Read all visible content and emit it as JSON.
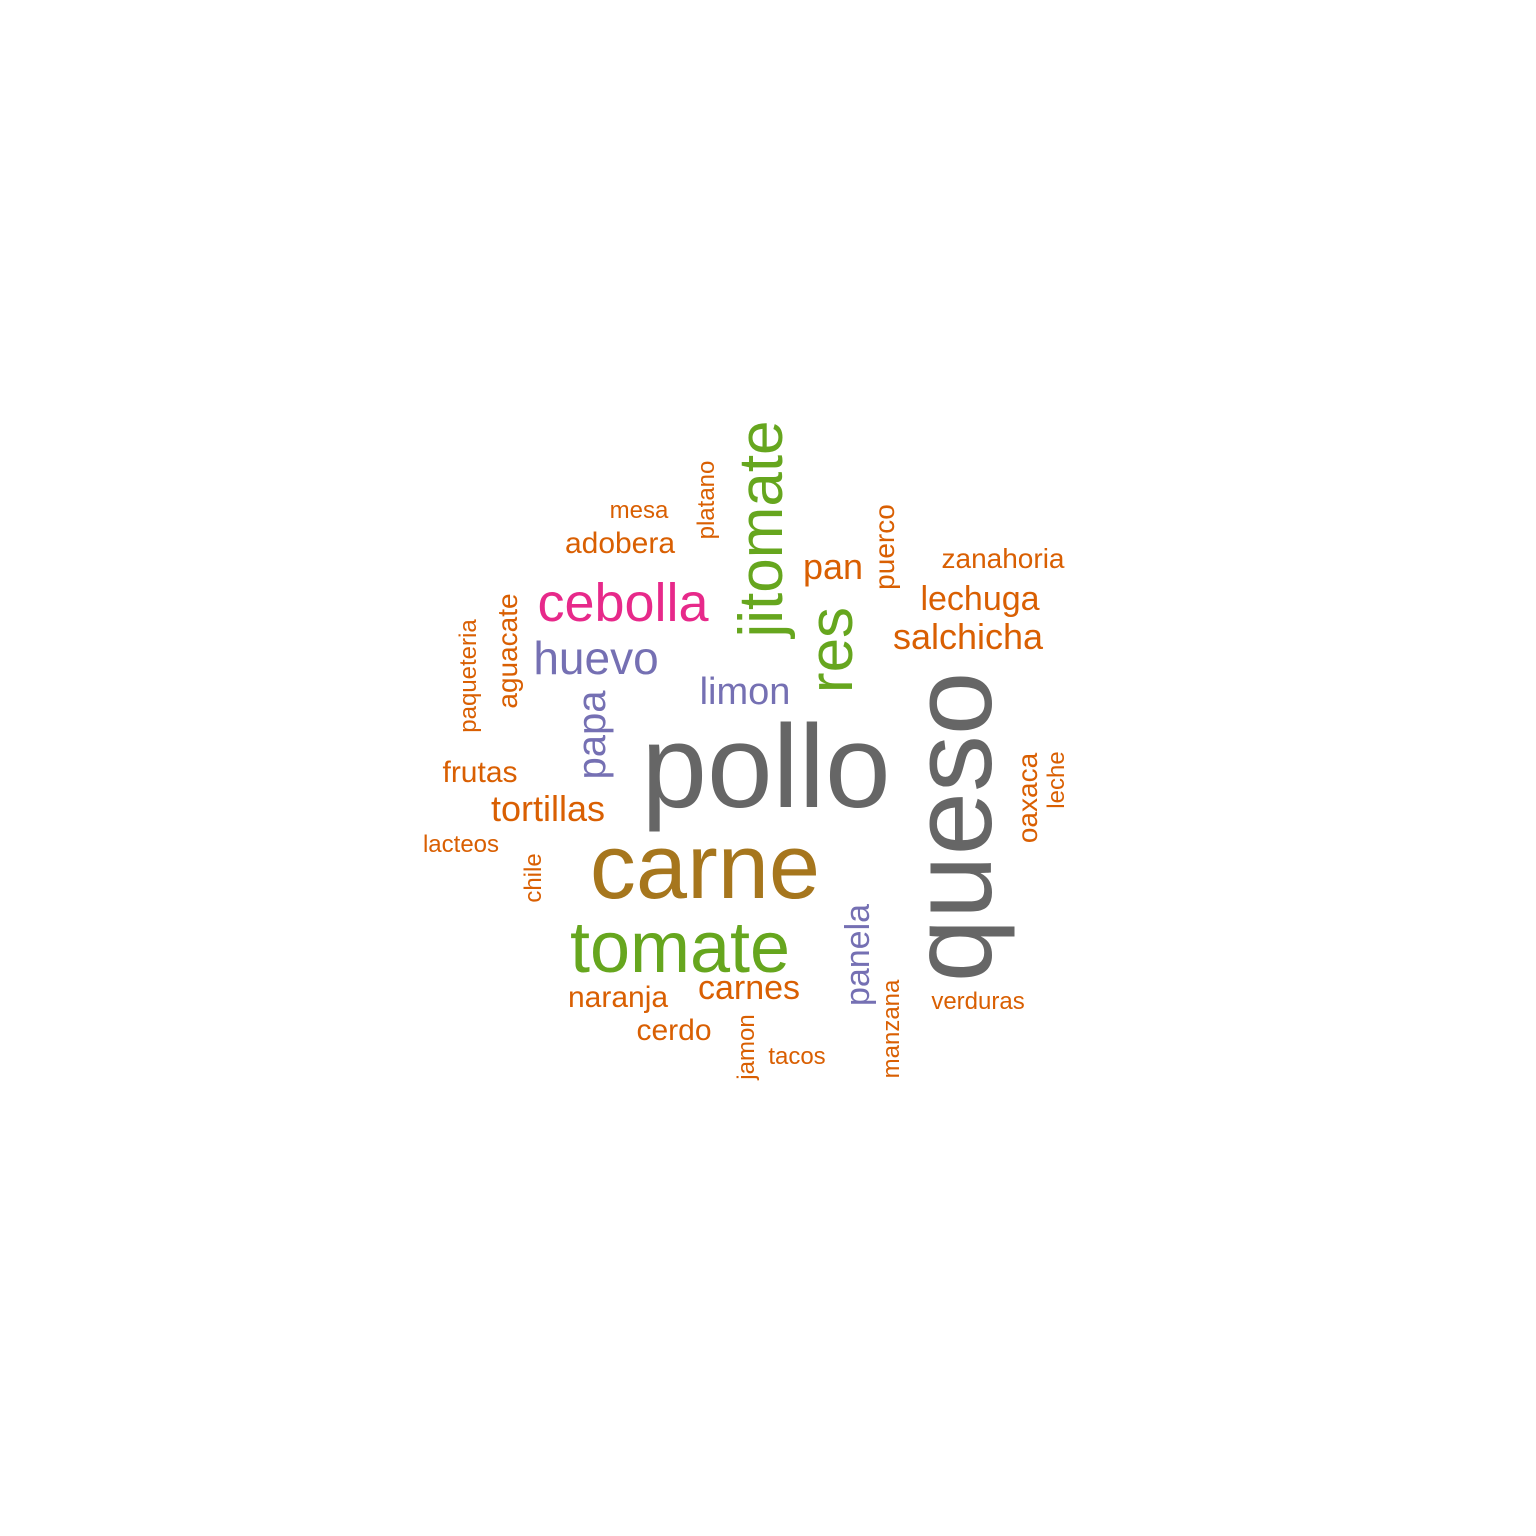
{
  "colors": {
    "background": "#ffffff",
    "orange": "#d95f02",
    "gray": "#666666",
    "brown": "#a6761d",
    "green": "#66a61e",
    "purple": "#7570b3",
    "pink": "#e7298a"
  },
  "words": [
    {
      "id": "pollo",
      "text": "pollo",
      "color": "#666666",
      "rotated": false
    },
    {
      "id": "queso",
      "text": "queso",
      "color": "#666666",
      "rotated": true
    },
    {
      "id": "carne",
      "text": "carne",
      "color": "#a6761d",
      "rotated": false
    },
    {
      "id": "tomate",
      "text": "tomate",
      "color": "#66a61e",
      "rotated": false
    },
    {
      "id": "jitomate",
      "text": "jitomate",
      "color": "#66a61e",
      "rotated": true
    },
    {
      "id": "res",
      "text": "res",
      "color": "#66a61e",
      "rotated": true
    },
    {
      "id": "cebolla",
      "text": "cebolla",
      "color": "#e7298a",
      "rotated": false
    },
    {
      "id": "huevo",
      "text": "huevo",
      "color": "#7570b3",
      "rotated": false
    },
    {
      "id": "papa",
      "text": "papa",
      "color": "#7570b3",
      "rotated": true
    },
    {
      "id": "limon",
      "text": "limon",
      "color": "#7570b3",
      "rotated": false
    },
    {
      "id": "panela",
      "text": "panela",
      "color": "#7570b3",
      "rotated": true
    },
    {
      "id": "salchicha",
      "text": "salchicha",
      "color": "#d95f02",
      "rotated": false
    },
    {
      "id": "lechuga",
      "text": "lechuga",
      "color": "#d95f02",
      "rotated": false
    },
    {
      "id": "pan",
      "text": "pan",
      "color": "#d95f02",
      "rotated": false
    },
    {
      "id": "tortillas",
      "text": "tortillas",
      "color": "#d95f02",
      "rotated": false
    },
    {
      "id": "carnes",
      "text": "carnes",
      "color": "#d95f02",
      "rotated": false
    },
    {
      "id": "adobera",
      "text": "adobera",
      "color": "#d95f02",
      "rotated": false
    },
    {
      "id": "frutas",
      "text": "frutas",
      "color": "#d95f02",
      "rotated": false
    },
    {
      "id": "naranja",
      "text": "naranja",
      "color": "#d95f02",
      "rotated": false
    },
    {
      "id": "cerdo",
      "text": "cerdo",
      "color": "#d95f02",
      "rotated": false
    },
    {
      "id": "aguacate",
      "text": "aguacate",
      "color": "#d95f02",
      "rotated": true
    },
    {
      "id": "puerco",
      "text": "puerco",
      "color": "#d95f02",
      "rotated": true
    },
    {
      "id": "oaxaca",
      "text": "oaxaca",
      "color": "#d95f02",
      "rotated": true
    },
    {
      "id": "zanahoria",
      "text": "zanahoria",
      "color": "#d95f02",
      "rotated": false
    },
    {
      "id": "mesa",
      "text": "mesa",
      "color": "#d95f02",
      "rotated": false
    },
    {
      "id": "platano",
      "text": "platano",
      "color": "#d95f02",
      "rotated": true
    },
    {
      "id": "paqueteria",
      "text": "paqueteria",
      "color": "#d95f02",
      "rotated": true
    },
    {
      "id": "leche",
      "text": "leche",
      "color": "#d95f02",
      "rotated": true
    },
    {
      "id": "lacteos",
      "text": "lacteos",
      "color": "#d95f02",
      "rotated": false
    },
    {
      "id": "chile",
      "text": "chile",
      "color": "#d95f02",
      "rotated": true
    },
    {
      "id": "verduras",
      "text": "verduras",
      "color": "#d95f02",
      "rotated": false
    },
    {
      "id": "jamon",
      "text": "jamon",
      "color": "#d95f02",
      "rotated": true
    },
    {
      "id": "tacos",
      "text": "tacos",
      "color": "#d95f02",
      "rotated": false
    },
    {
      "id": "manzana",
      "text": "manzana",
      "color": "#d95f02",
      "rotated": true
    }
  ]
}
